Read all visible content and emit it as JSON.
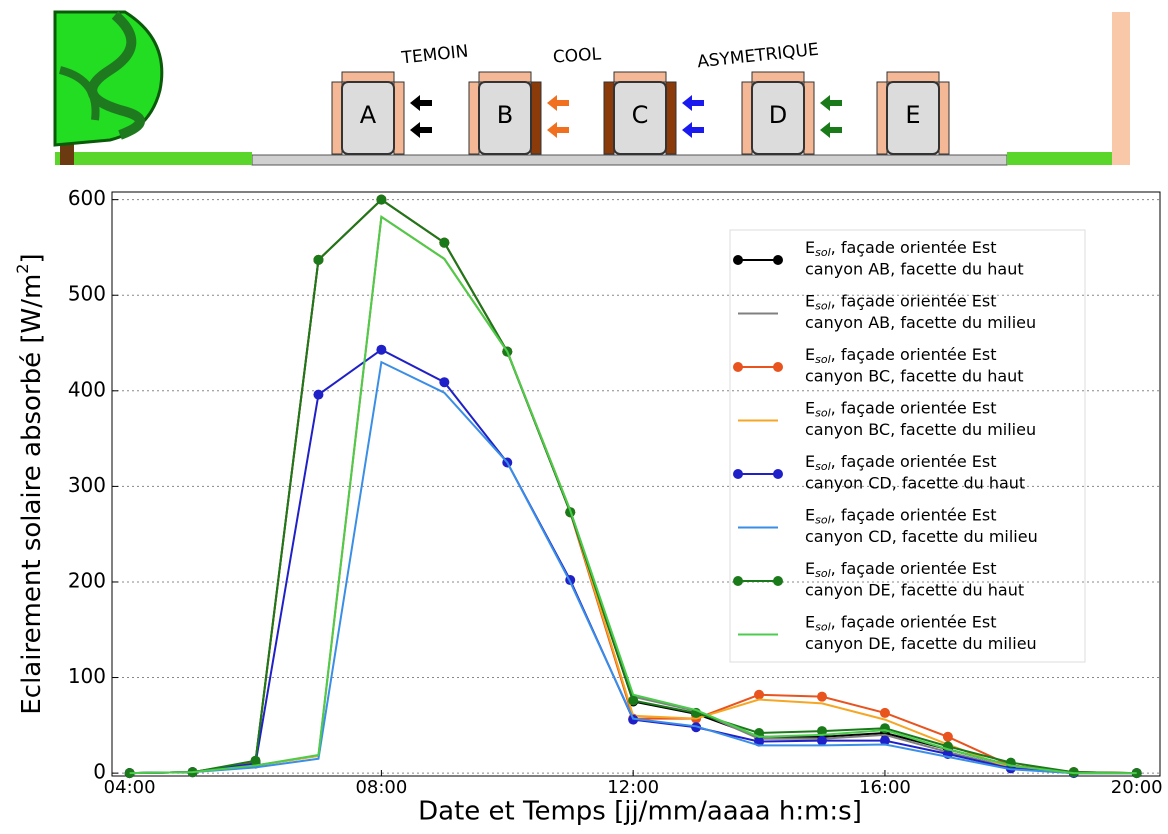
{
  "diagram": {
    "labels": [
      "TEMOIN",
      "COOL",
      "ASYMETRIQUE"
    ],
    "buildings": [
      "A",
      "B",
      "C",
      "D",
      "E"
    ]
  },
  "chart_data": {
    "type": "line",
    "xlabel": "Date et Temps [jj/mm/aaaa h:m:s]",
    "ylabel": {
      "text": "Eclairement solaire absorbé [W/m",
      "sup": "2",
      "end": "]"
    },
    "legend_prefix": {
      "base": "E",
      "sub": "sol",
      "text": ", façade orientée Est"
    },
    "x": [
      4,
      5,
      6,
      7,
      8,
      9,
      10,
      11,
      12,
      13,
      14,
      15,
      16,
      17,
      18,
      19,
      20
    ],
    "xlim": [
      3.72,
      20.37
    ],
    "xticks": [
      {
        "value": 4,
        "label": "04:00"
      },
      {
        "value": 8,
        "label": "08:00"
      },
      {
        "value": 12,
        "label": "12:00"
      },
      {
        "value": 16,
        "label": "16:00"
      },
      {
        "value": 20,
        "label": "20:00"
      }
    ],
    "ylim": [
      -3,
      608
    ],
    "yticks": [
      0,
      100,
      200,
      300,
      400,
      500,
      600
    ],
    "grid": true,
    "legend": "upper right",
    "series": [
      {
        "name": "canyon AB, facette du haut",
        "color": "#000000",
        "marker": true,
        "values": [
          0,
          1,
          12,
          537,
          600,
          555,
          441,
          273,
          75,
          62,
          38,
          38,
          42,
          25,
          8,
          1,
          0
        ]
      },
      {
        "name": "canyon AB, facette du milieu",
        "color": "#808080",
        "marker": false,
        "values": [
          0,
          1,
          8,
          18,
          582,
          538,
          441,
          275,
          80,
          65,
          36,
          36,
          40,
          22,
          6,
          0,
          0
        ]
      },
      {
        "name": "canyon BC, facette du haut",
        "color": "#e8531e",
        "marker": true,
        "values": [
          0,
          1,
          12,
          537,
          600,
          555,
          441,
          273,
          57,
          57,
          82,
          80,
          63,
          38,
          8,
          1,
          0
        ]
      },
      {
        "name": "canyon BC, facette du milieu",
        "color": "#f5a623",
        "marker": false,
        "values": [
          0,
          1,
          8,
          18,
          582,
          538,
          441,
          275,
          60,
          57,
          77,
          73,
          56,
          30,
          5,
          0,
          0
        ]
      },
      {
        "name": "canyon CD, facette du haut",
        "color": "#2020c8",
        "marker": true,
        "values": [
          0,
          1,
          10,
          396,
          443,
          409,
          325,
          202,
          56,
          48,
          33,
          34,
          34,
          20,
          5,
          0,
          0
        ]
      },
      {
        "name": "canyon CD, facette du milieu",
        "color": "#3a8ee6",
        "marker": false,
        "values": [
          0,
          1,
          6,
          15,
          430,
          398,
          325,
          200,
          57,
          49,
          29,
          29,
          30,
          17,
          4,
          0,
          0
        ]
      },
      {
        "name": "canyon DE, facette du haut",
        "color": "#1a7a1a",
        "marker": true,
        "values": [
          0,
          1,
          13,
          537,
          600,
          555,
          441,
          273,
          76,
          63,
          42,
          44,
          47,
          28,
          11,
          1,
          0
        ]
      },
      {
        "name": "canyon DE, facette du milieu",
        "color": "#4ccc4c",
        "marker": false,
        "values": [
          0,
          1,
          8,
          19,
          582,
          538,
          441,
          275,
          82,
          66,
          38,
          40,
          45,
          25,
          8,
          0,
          0
        ]
      }
    ]
  }
}
